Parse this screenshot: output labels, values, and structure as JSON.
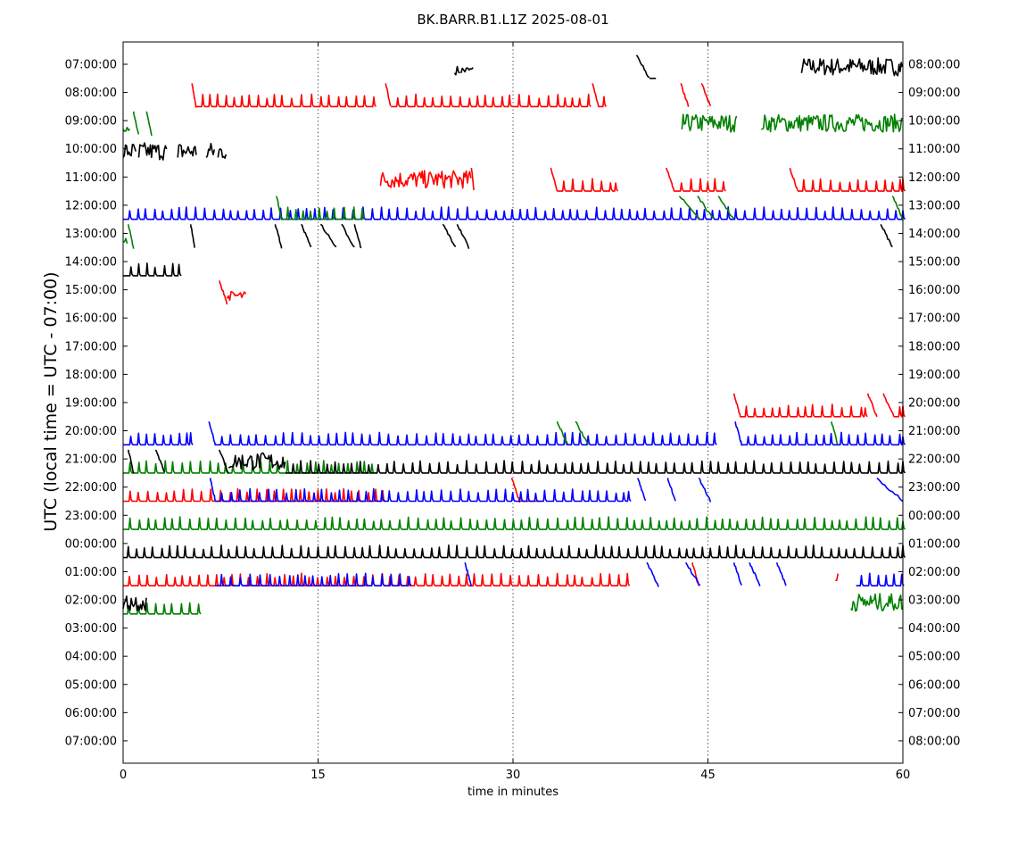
{
  "chart_data": {
    "type": "line",
    "title": "BK.BARR.B1.L1Z 2025-08-01",
    "xlabel": "time in minutes",
    "ylabel": "UTC (local time = UTC - 07:00)",
    "xlim": [
      0,
      60
    ],
    "x_ticks": [
      "0",
      "15",
      "30",
      "45",
      "60"
    ],
    "grid": "vertical dotted lines at 15, 30, 45",
    "left_tick_labels": [
      "07:00:00",
      "08:00:00",
      "09:00:00",
      "10:00:00",
      "11:00:00",
      "12:00:00",
      "13:00:00",
      "14:00:00",
      "15:00:00",
      "16:00:00",
      "17:00:00",
      "18:00:00",
      "19:00:00",
      "20:00:00",
      "21:00:00",
      "22:00:00",
      "23:00:00",
      "00:00:00",
      "01:00:00",
      "02:00:00",
      "03:00:00",
      "04:00:00",
      "05:00:00",
      "06:00:00",
      "07:00:00"
    ],
    "right_tick_labels": [
      "08:00:00",
      "09:00:00",
      "10:00:00",
      "11:00:00",
      "12:00:00",
      "13:00:00",
      "14:00:00",
      "15:00:00",
      "16:00:00",
      "17:00:00",
      "18:00:00",
      "19:00:00",
      "20:00:00",
      "21:00:00",
      "22:00:00",
      "23:00:00",
      "00:00:00",
      "01:00:00",
      "02:00:00",
      "03:00:00",
      "04:00:00",
      "05:00:00",
      "06:00:00",
      "07:00:00",
      "08:00:00"
    ],
    "colors": [
      "#ff0000",
      "#008000",
      "#000000",
      "#0000ff"
    ],
    "traces": [
      {
        "row": 0,
        "color": "#000000",
        "segments": [
          [
            25.5,
            26.0,
            "wiggle"
          ],
          [
            26.0,
            27.0,
            "wiggle"
          ],
          [
            39.5,
            40.5,
            "drop"
          ],
          [
            40.5,
            41.0,
            "flat"
          ],
          [
            52.2,
            60.0,
            "burst"
          ]
        ]
      },
      {
        "row": 1,
        "color": "#ff0000",
        "segments": [
          [
            5.3,
            5.6,
            "drop"
          ],
          [
            5.6,
            19.4,
            "spikes"
          ],
          [
            20.2,
            20.6,
            "drop"
          ],
          [
            20.6,
            35.9,
            "spikes"
          ],
          [
            36.1,
            36.6,
            "drop"
          ],
          [
            36.6,
            37.0,
            "spikes"
          ],
          [
            42.9,
            43.5,
            "drop"
          ],
          [
            44.5,
            45.2,
            "drop"
          ]
        ]
      },
      {
        "row": 2,
        "color": "#008000",
        "segments": [
          [
            0.0,
            0.6,
            "wiggle"
          ],
          [
            0.8,
            1.2,
            "drop"
          ],
          [
            1.8,
            2.2,
            "drop"
          ],
          [
            43.0,
            47.2,
            "burst"
          ],
          [
            49.1,
            60.0,
            "burst"
          ]
        ]
      },
      {
        "row": 3,
        "color": "#000000",
        "segments": [
          [
            0.0,
            1.0,
            "burst"
          ],
          [
            1.2,
            3.4,
            "burst"
          ],
          [
            4.2,
            5.7,
            "burst"
          ],
          [
            6.4,
            7.1,
            "burst"
          ],
          [
            7.3,
            8.0,
            "burst"
          ]
        ]
      },
      {
        "row": 4,
        "color": "#ff0000",
        "segments": [
          [
            19.8,
            26.8,
            "burst"
          ],
          [
            26.8,
            27.0,
            "drop"
          ],
          [
            32.9,
            33.4,
            "drop"
          ],
          [
            33.4,
            37.9,
            "spikes"
          ],
          [
            41.8,
            42.4,
            "drop"
          ],
          [
            42.4,
            46.3,
            "spikes"
          ],
          [
            51.3,
            51.9,
            "drop"
          ],
          [
            51.9,
            60.0,
            "spikes"
          ]
        ]
      },
      {
        "row": 5,
        "color": "#0000ff",
        "segments": [
          [
            0.0,
            60.0,
            "spikes"
          ]
        ]
      },
      {
        "row": 5,
        "color": "#008000",
        "segments": [
          [
            11.8,
            12.2,
            "drop"
          ],
          [
            12.2,
            18.4,
            "spikes"
          ],
          [
            42.8,
            44.4,
            "drop"
          ],
          [
            44.2,
            45.4,
            "drop"
          ],
          [
            45.8,
            47.0,
            "drop"
          ],
          [
            59.2,
            60.0,
            "drop"
          ]
        ]
      },
      {
        "row": 6,
        "color": "#008000",
        "segments": [
          [
            0.0,
            0.4,
            "wiggle"
          ],
          [
            0.4,
            0.8,
            "drop"
          ]
        ]
      },
      {
        "row": 6,
        "color": "#000000",
        "segments": [
          [
            5.2,
            5.5,
            "drop"
          ],
          [
            11.7,
            12.2,
            "drop"
          ],
          [
            13.7,
            14.5,
            "drop"
          ],
          [
            15.2,
            16.4,
            "drop"
          ],
          [
            16.8,
            17.8,
            "drop"
          ],
          [
            17.8,
            18.3,
            "drop"
          ],
          [
            24.6,
            25.6,
            "drop"
          ],
          [
            25.7,
            26.6,
            "drop"
          ],
          [
            58.3,
            59.2,
            "drop"
          ]
        ]
      },
      {
        "row": 7,
        "color": "#000000",
        "segments": [
          [
            0.0,
            4.3,
            "spikes"
          ]
        ]
      },
      {
        "row": 8,
        "color": "#ff0000",
        "segments": [
          [
            7.4,
            8.0,
            "drop"
          ],
          [
            8.0,
            9.5,
            "wiggle"
          ]
        ]
      },
      {
        "row": 12,
        "color": "#ff0000",
        "segments": [
          [
            47.0,
            47.5,
            "drop"
          ],
          [
            47.5,
            57.1,
            "spikes"
          ],
          [
            57.3,
            58.0,
            "drop"
          ],
          [
            58.5,
            59.3,
            "drop"
          ],
          [
            59.3,
            60.0,
            "spikes"
          ]
        ]
      },
      {
        "row": 13,
        "color": "#0000ff",
        "segments": [
          [
            0.0,
            5.2,
            "spikes"
          ],
          [
            6.6,
            7.1,
            "drop"
          ],
          [
            7.1,
            45.5,
            "spikes"
          ],
          [
            47.1,
            47.6,
            "drop"
          ],
          [
            47.6,
            60.0,
            "spikes"
          ]
        ]
      },
      {
        "row": 13,
        "color": "#008000",
        "segments": [
          [
            33.4,
            34.2,
            "drop"
          ],
          [
            34.8,
            35.8,
            "drop"
          ],
          [
            54.5,
            55.0,
            "drop"
          ]
        ]
      },
      {
        "row": 14,
        "color": "#008000",
        "segments": [
          [
            0.0,
            19.2,
            "spikes"
          ]
        ]
      },
      {
        "row": 14,
        "color": "#000000",
        "segments": [
          [
            0.4,
            0.8,
            "drop"
          ],
          [
            2.5,
            3.2,
            "drop"
          ],
          [
            7.4,
            8.1,
            "drop"
          ],
          [
            8.1,
            12.5,
            "burst"
          ],
          [
            12.5,
            60.0,
            "spikes"
          ]
        ]
      },
      {
        "row": 15,
        "color": "#ff0000",
        "segments": [
          [
            0.0,
            20.1,
            "spikes"
          ],
          [
            29.9,
            30.5,
            "drop"
          ],
          [
            30.5,
            32.2,
            "flat"
          ]
        ]
      },
      {
        "row": 15,
        "color": "#0000ff",
        "segments": [
          [
            6.7,
            7.1,
            "drop"
          ],
          [
            7.1,
            38.9,
            "spikes"
          ],
          [
            39.6,
            40.2,
            "drop"
          ],
          [
            41.9,
            42.5,
            "drop"
          ],
          [
            44.3,
            45.2,
            "drop"
          ],
          [
            58.0,
            60.0,
            "drop"
          ]
        ]
      },
      {
        "row": 16,
        "color": "#008000",
        "segments": [
          [
            0.0,
            60.0,
            "spikes"
          ]
        ]
      },
      {
        "row": 17,
        "color": "#000000",
        "segments": [
          [
            0.0,
            60.0,
            "spikes"
          ]
        ]
      },
      {
        "row": 18,
        "color": "#ff0000",
        "segments": [
          [
            0.0,
            38.8,
            "spikes"
          ],
          [
            43.8,
            44.3,
            "drop"
          ],
          [
            54.8,
            55.1,
            "wiggle"
          ]
        ]
      },
      {
        "row": 18,
        "color": "#0000ff",
        "segments": [
          [
            7.1,
            22.1,
            "spikes"
          ],
          [
            26.3,
            26.8,
            "drop"
          ],
          [
            40.3,
            41.2,
            "drop"
          ],
          [
            43.3,
            44.4,
            "drop"
          ],
          [
            47.0,
            47.6,
            "drop"
          ],
          [
            48.2,
            49.0,
            "drop"
          ],
          [
            50.3,
            51.0,
            "drop"
          ],
          [
            56.4,
            60.0,
            "spikes"
          ]
        ]
      },
      {
        "row": 19,
        "color": "#008000",
        "segments": [
          [
            0.0,
            5.9,
            "spikes"
          ],
          [
            56.0,
            60.0,
            "burst"
          ]
        ]
      },
      {
        "row": 19,
        "color": "#000000",
        "segments": [
          [
            0.0,
            1.8,
            "burst"
          ]
        ]
      }
    ]
  }
}
